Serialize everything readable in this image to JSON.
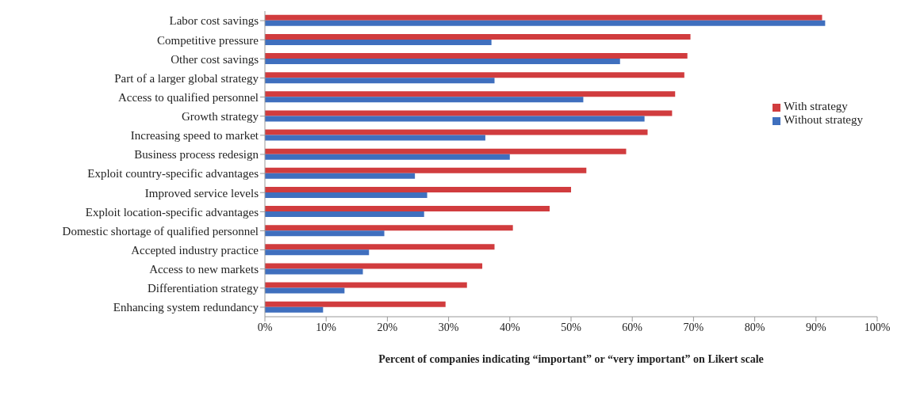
{
  "chart_data": {
    "type": "bar",
    "orientation": "horizontal",
    "xlabel": "Percent of companies indicating “important” or “very important” on Likert scale",
    "categories": [
      "Labor cost savings",
      "Competitive pressure",
      "Other cost savings",
      "Part of a larger global strategy",
      "Access to qualified personnel",
      "Growth strategy",
      "Increasing speed to market",
      "Business process redesign",
      "Exploit country-specific advantages",
      "Improved service levels",
      "Exploit location-specific advantages",
      "Domestic shortage of qualified personnel",
      "Accepted industry practice",
      "Access to new markets",
      "Differentiation strategy",
      "Enhancing system redundancy"
    ],
    "series": [
      {
        "name": "With strategy",
        "color": "#d13c3e",
        "values": [
          91,
          69.5,
          69,
          68.5,
          67,
          66.5,
          62.5,
          59,
          52.5,
          50,
          46.5,
          40.5,
          37.5,
          35.5,
          33,
          29.5
        ]
      },
      {
        "name": "Without strategy",
        "color": "#3f6fbe",
        "values": [
          91.5,
          37,
          58,
          37.5,
          52,
          62,
          36,
          40,
          24.5,
          26.5,
          26,
          19.5,
          17,
          16,
          13,
          9.5
        ]
      }
    ],
    "xlim": [
      0,
      100
    ],
    "xticks": [
      {
        "value": 0,
        "label": "0%"
      },
      {
        "value": 10,
        "label": "10%"
      },
      {
        "value": 20,
        "label": "20%"
      },
      {
        "value": 30,
        "label": "30%"
      },
      {
        "value": 40,
        "label": "40%"
      },
      {
        "value": 50,
        "label": "50%"
      },
      {
        "value": 60,
        "label": "60%"
      },
      {
        "value": 70,
        "label": "70%"
      },
      {
        "value": 80,
        "label": "80%"
      },
      {
        "value": 90,
        "label": "90%"
      },
      {
        "value": 100,
        "label": "100%"
      }
    ],
    "grid": false,
    "legend": "top right"
  }
}
